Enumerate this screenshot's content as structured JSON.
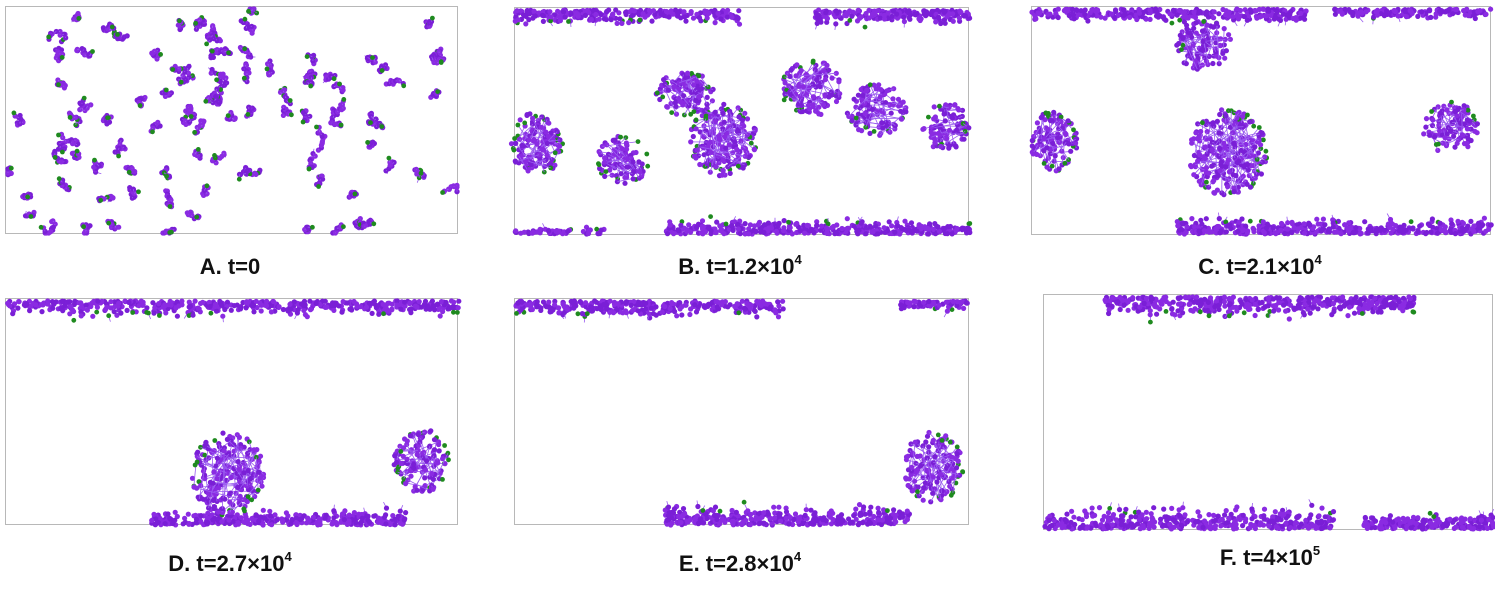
{
  "colors": {
    "particle": "#8a2be2",
    "particle_dark": "#7a1fd6",
    "end_particle": "#1f8a1f",
    "bond": "#9a5cf0",
    "frame": "#b8b8b8"
  },
  "panels": [
    {
      "id": "A",
      "label_main": "A. t=0",
      "label_exp": "",
      "state": "dispersed"
    },
    {
      "id": "B",
      "label_main": "B. t=1.2×10",
      "label_exp": "4",
      "state": "clusters-forming"
    },
    {
      "id": "C",
      "label_main": "C. t=2.1×10",
      "label_exp": "4",
      "state": "clusters-merging"
    },
    {
      "id": "D",
      "label_main": "D. t=2.7×10",
      "label_exp": "4",
      "state": "wall-layers"
    },
    {
      "id": "E",
      "label_main": "E. t=2.8×10",
      "label_exp": "4",
      "state": "wall-layers"
    },
    {
      "id": "F",
      "label_main": "F. t=4×10",
      "label_exp": "5",
      "state": "final-layers"
    }
  ]
}
